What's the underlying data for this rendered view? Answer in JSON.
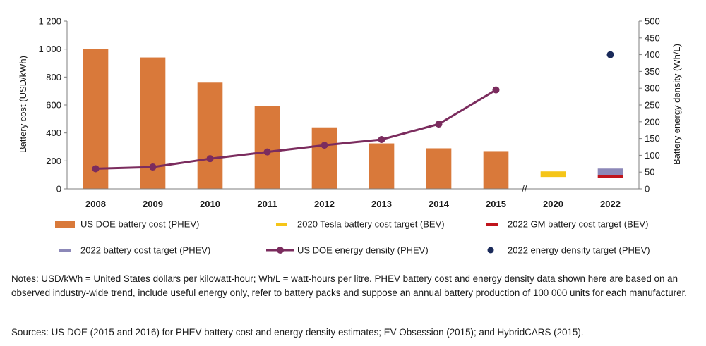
{
  "chart_data": {
    "type": "bar",
    "categories": [
      "2008",
      "2009",
      "2010",
      "2011",
      "2012",
      "2013",
      "2014",
      "2015",
      "2020",
      "2022"
    ],
    "ylabel": "Battery cost (USD/kWh)",
    "y2label": "Battery energy density (Wh/L)",
    "ylim": [
      0,
      1200
    ],
    "y2lim": [
      0,
      500
    ],
    "yticks": [
      "0",
      "200",
      "400",
      "600",
      "800",
      "1 000",
      "1 200"
    ],
    "y2ticks": [
      "0",
      "50",
      "100",
      "150",
      "200",
      "250",
      "300",
      "350",
      "400",
      "450",
      "500"
    ],
    "axis_break": "//",
    "grid": false,
    "legend_position": "bottom",
    "series": [
      {
        "name": "US DOE battery cost (PHEV)",
        "kind": "bar",
        "axis": "left",
        "color": "#d9793a",
        "values": [
          1000,
          940,
          760,
          590,
          440,
          325,
          290,
          270,
          null,
          null
        ]
      },
      {
        "name": "2020 Tesla battery cost target (BEV)",
        "kind": "target-band",
        "axis": "left",
        "color": "#f5c518",
        "range": {
          "category": "2020",
          "low": 85,
          "high": 125
        }
      },
      {
        "name": "2022 GM battery cost target (BEV)",
        "kind": "target-band",
        "axis": "left",
        "color": "#c0141c",
        "range": {
          "category": "2022",
          "low": 80,
          "high": 100
        }
      },
      {
        "name": "2022 battery cost target (PHEV)",
        "kind": "target-band",
        "axis": "left",
        "color": "#8c88b8",
        "range": {
          "category": "2022",
          "low": 100,
          "high": 145
        }
      },
      {
        "name": "US DOE energy density (PHEV)",
        "kind": "line",
        "axis": "right",
        "color": "#7b2c5e",
        "values": [
          60,
          65,
          90,
          110,
          130,
          147,
          193,
          295,
          null,
          null
        ]
      },
      {
        "name": "2022 energy density target (PHEV)",
        "kind": "point",
        "axis": "right",
        "color": "#1a2a5a",
        "point": {
          "category": "2022",
          "value": 400
        }
      }
    ]
  },
  "notes": "Notes: USD/kWh = United States dollars per kilowatt-hour; Wh/L = watt-hours per litre. PHEV battery cost and energy density data shown here are based on an observed industry-wide trend, include useful energy only, refer to battery packs and suppose an annual battery production of 100 000 units for each manufacturer.",
  "sources": "Sources: US DOE (2015 and 2016) for PHEV battery cost and energy density estimates; EV Obsession (2015); and HybridCARS (2015)."
}
